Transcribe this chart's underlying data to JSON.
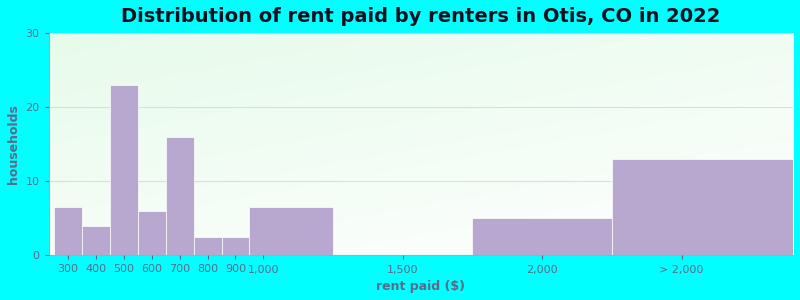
{
  "title": "Distribution of rent paid by renters in Otis, CO in 2022",
  "xlabel": "rent paid ($)",
  "ylabel": "households",
  "bar_color": "#b8a8d0",
  "background_outer": "#00ffff",
  "bar_labels": [
    "300",
    "400",
    "500",
    "600",
    "700",
    "800",
    "900",
    "1,000",
    "1,500",
    "2,000",
    "> 2,000"
  ],
  "bar_left_edges": [
    250,
    350,
    450,
    550,
    650,
    750,
    850,
    950,
    1250,
    1750,
    2250
  ],
  "bar_right_edges": [
    350,
    450,
    550,
    650,
    750,
    850,
    950,
    1250,
    1750,
    2250,
    2900
  ],
  "bar_heights": [
    6.5,
    4.0,
    23.0,
    6.0,
    16.0,
    2.5,
    2.5,
    6.5,
    0,
    5.0,
    13.0
  ],
  "tick_positions": [
    300,
    400,
    500,
    600,
    700,
    800,
    900,
    1000,
    1500,
    2000,
    2500
  ],
  "xlim": [
    230,
    2900
  ],
  "ylim": [
    0,
    30
  ],
  "yticks": [
    0,
    10,
    20,
    30
  ],
  "title_fontsize": 14,
  "axis_label_fontsize": 9,
  "tick_fontsize": 8,
  "text_color": "#5a6a8a",
  "title_color": "#111122",
  "grid_color": "#dddddd",
  "spine_color": "#aaaaaa"
}
